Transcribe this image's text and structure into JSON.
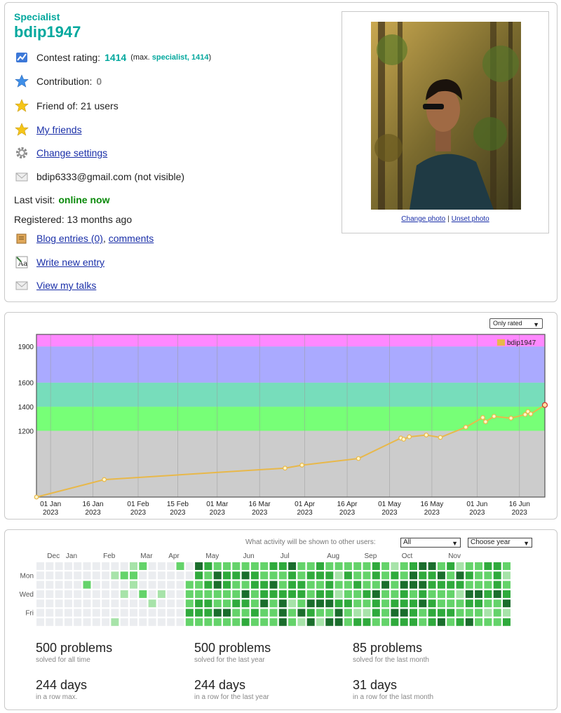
{
  "profile": {
    "rank": "Specialist",
    "handle": "bdip1947",
    "contest_rating_label": "Contest rating:",
    "contest_rating_value": "1414",
    "max_prefix": "(max.",
    "max_rank": "specialist, 1414",
    "max_suffix": ")",
    "contribution_label": "Contribution:",
    "contribution_value": "0",
    "friend_of": "Friend of: 21 users",
    "my_friends": "My friends",
    "change_settings": "Change settings",
    "email": "bdip6333@gmail.com (not visible)",
    "last_visit_label": "Last visit:",
    "last_visit_value": "online now",
    "registered": "Registered: 13 months ago",
    "blog_entries": "Blog entries (0)",
    "comma": ",",
    "comments": "comments",
    "write_new_entry": "Write new entry",
    "view_my_talks": "View my talks",
    "change_photo": "Change photo",
    "separator": "|",
    "unset_photo": "Unset photo"
  },
  "chart_controls": {
    "filter": "Only rated"
  },
  "chart_data": {
    "type": "line",
    "legend": "bdip1947",
    "legend_position": "top-right",
    "grid": true,
    "y_ticks": [
      "1900",
      "1600",
      "1400",
      "1200"
    ],
    "ylim": [
      650,
      2000
    ],
    "x_ticks": [
      {
        "day": "01 Jan",
        "year": "2023"
      },
      {
        "day": "16 Jan",
        "year": "2023"
      },
      {
        "day": "01 Feb",
        "year": "2023"
      },
      {
        "day": "15 Feb",
        "year": "2023"
      },
      {
        "day": "01 Mar",
        "year": "2023"
      },
      {
        "day": "16 Mar",
        "year": "2023"
      },
      {
        "day": "01 Apr",
        "year": "2023"
      },
      {
        "day": "16 Apr",
        "year": "2023"
      },
      {
        "day": "01 May",
        "year": "2023"
      },
      {
        "day": "16 May",
        "year": "2023"
      },
      {
        "day": "01 Jun",
        "year": "2023"
      },
      {
        "day": "16 Jun",
        "year": "2023"
      }
    ],
    "xlim": [
      "2022-12-27",
      "2023-06-25"
    ],
    "bands": [
      {
        "from": 1200,
        "to": 1400,
        "color": "#77ff77"
      },
      {
        "from": 1400,
        "to": 1600,
        "color": "#77ddbb"
      },
      {
        "from": 1600,
        "to": 1900,
        "color": "#aaaaff"
      },
      {
        "from": 1900,
        "to": 2000,
        "color": "#ff88ff"
      }
    ],
    "below_band_color": "#cccccc",
    "line_color": "#e8b84a",
    "points": [
      {
        "x": "2022-12-27",
        "y": 650
      },
      {
        "x": "2023-01-20",
        "y": 795
      },
      {
        "x": "2023-03-25",
        "y": 890
      },
      {
        "x": "2023-03-31",
        "y": 915
      },
      {
        "x": "2023-04-20",
        "y": 970
      },
      {
        "x": "2023-05-05",
        "y": 1140
      },
      {
        "x": "2023-05-06",
        "y": 1130
      },
      {
        "x": "2023-05-08",
        "y": 1150
      },
      {
        "x": "2023-05-14",
        "y": 1165
      },
      {
        "x": "2023-05-19",
        "y": 1145
      },
      {
        "x": "2023-05-28",
        "y": 1230
      },
      {
        "x": "2023-06-03",
        "y": 1310
      },
      {
        "x": "2023-06-04",
        "y": 1275
      },
      {
        "x": "2023-06-07",
        "y": 1320
      },
      {
        "x": "2023-06-13",
        "y": 1305
      },
      {
        "x": "2023-06-18",
        "y": 1335
      },
      {
        "x": "2023-06-19",
        "y": 1360
      },
      {
        "x": "2023-06-20",
        "y": 1340
      },
      {
        "x": "2023-06-25",
        "y": 1414
      }
    ]
  },
  "activity": {
    "visibility_label": "What activity will be shown to other users:",
    "visibility_value": "All",
    "year_select": "Choose year",
    "months": [
      {
        "label": "Dec",
        "week": 1
      },
      {
        "label": "Jan",
        "week": 3
      },
      {
        "label": "Feb",
        "week": 7
      },
      {
        "label": "Mar",
        "week": 11
      },
      {
        "label": "Apr",
        "week": 14
      },
      {
        "label": "May",
        "week": 18
      },
      {
        "label": "Jun",
        "week": 22
      },
      {
        "label": "Jul",
        "week": 26
      },
      {
        "label": "Aug",
        "week": 31
      },
      {
        "label": "Sep",
        "week": 35
      },
      {
        "label": "Oct",
        "week": 39
      },
      {
        "label": "Nov",
        "week": 44
      }
    ],
    "weekday_labels": [
      {
        "label": "Mon",
        "row": 1
      },
      {
        "label": "Wed",
        "row": 3
      },
      {
        "label": "Fri",
        "row": 5
      }
    ],
    "weeks": 51,
    "level_colors": [
      "#ebedf0",
      "#a7e3a9",
      "#64d36a",
      "#2faa3c",
      "#1a6d2c"
    ],
    "stats": [
      {
        "value": "500 problems",
        "caption": "solved for all time"
      },
      {
        "value": "500 problems",
        "caption": "solved for the last year"
      },
      {
        "value": "85 problems",
        "caption": "solved for the last month"
      },
      {
        "value": "244 days",
        "caption": "in a row max."
      },
      {
        "value": "244 days",
        "caption": "in a row for the last year"
      },
      {
        "value": "31 days",
        "caption": "in a row for the last month"
      }
    ]
  }
}
